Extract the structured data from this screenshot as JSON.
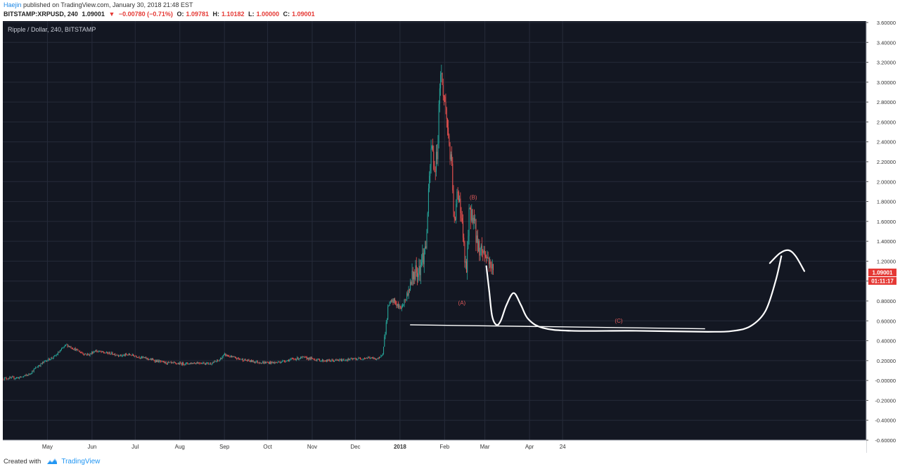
{
  "publication": {
    "author": "Haejin",
    "text": "published on TradingView.com, January 30, 2018 21:48 EST"
  },
  "symbol_line": {
    "symbol": "BITSTAMP:XRPUSD, 240",
    "last": "1.09001",
    "change": "−0.00780 (−0.71%)",
    "open_label": "O:",
    "open": "1.09781",
    "high_label": "H:",
    "high": "1.10182",
    "low_label": "L:",
    "low": "1.00000",
    "close_label": "C:",
    "close": "1.09001"
  },
  "price_tag": {
    "value": "1.09001",
    "countdown": "01:11:17"
  },
  "footer": {
    "created_with": "Created with",
    "brand": "TradingView"
  },
  "colors": {
    "background": "#131722",
    "grid": "#262b3a",
    "candle_up": "#26a69a",
    "candle_down": "#ef5350",
    "price_tag": "#e53935",
    "drawing": "#ffffff",
    "annotation": "#e05a5a"
  },
  "chart_data": {
    "type": "candlestick",
    "title": "Ripple / Dollar, 240, BITSTAMP",
    "ylim": [
      -0.6,
      3.6
    ],
    "y_ticks": [
      "3.60000",
      "3.40000",
      "3.20000",
      "3.00000",
      "2.80000",
      "2.60000",
      "2.40000",
      "2.20000",
      "2.00000",
      "1.80000",
      "1.60000",
      "1.40000",
      "1.20000",
      "1.00000",
      "0.80000",
      "0.60000",
      "0.40000",
      "0.20000",
      "-0.00000",
      "-0.20000",
      "-0.40000",
      "-0.60000"
    ],
    "x_ticks": [
      "May",
      "Jun",
      "Jul",
      "Aug",
      "Sep",
      "Oct",
      "Nov",
      "Dec",
      "2018",
      "Feb",
      "Mar",
      "Apr",
      "24"
    ],
    "x_tick_days": [
      31,
      62,
      92,
      123,
      154,
      184,
      215,
      245,
      276,
      307,
      335,
      366,
      389
    ],
    "x_range_days": [
      0,
      600
    ],
    "grid": true,
    "price_path": [
      [
        0,
        0.02
      ],
      [
        12,
        0.03
      ],
      [
        18,
        0.06
      ],
      [
        24,
        0.14
      ],
      [
        30,
        0.2
      ],
      [
        36,
        0.24
      ],
      [
        40,
        0.3
      ],
      [
        44,
        0.36
      ],
      [
        48,
        0.33
      ],
      [
        52,
        0.3
      ],
      [
        56,
        0.27
      ],
      [
        60,
        0.26
      ],
      [
        64,
        0.3
      ],
      [
        70,
        0.28
      ],
      [
        76,
        0.27
      ],
      [
        82,
        0.25
      ],
      [
        88,
        0.26
      ],
      [
        94,
        0.24
      ],
      [
        100,
        0.22
      ],
      [
        106,
        0.2
      ],
      [
        112,
        0.18
      ],
      [
        120,
        0.17
      ],
      [
        128,
        0.17
      ],
      [
        136,
        0.18
      ],
      [
        144,
        0.17
      ],
      [
        150,
        0.2
      ],
      [
        154,
        0.26
      ],
      [
        160,
        0.23
      ],
      [
        170,
        0.2
      ],
      [
        180,
        0.18
      ],
      [
        190,
        0.18
      ],
      [
        200,
        0.21
      ],
      [
        208,
        0.23
      ],
      [
        214,
        0.22
      ],
      [
        222,
        0.2
      ],
      [
        230,
        0.2
      ],
      [
        240,
        0.21
      ],
      [
        248,
        0.22
      ],
      [
        254,
        0.23
      ],
      [
        258,
        0.22
      ],
      [
        262,
        0.22
      ],
      [
        264,
        0.28
      ],
      [
        266,
        0.52
      ],
      [
        268,
        0.76
      ],
      [
        272,
        0.8
      ],
      [
        276,
        0.72
      ],
      [
        280,
        0.82
      ],
      [
        284,
        1.0
      ],
      [
        286,
        1.1
      ],
      [
        290,
        1.15
      ],
      [
        294,
        1.35
      ],
      [
        296,
        1.9
      ],
      [
        298,
        2.4
      ],
      [
        300,
        2.1
      ],
      [
        302,
        2.3
      ],
      [
        304,
        3.15
      ],
      [
        306,
        2.9
      ],
      [
        308,
        2.7
      ],
      [
        310,
        2.4
      ],
      [
        312,
        2.1
      ],
      [
        314,
        1.5
      ],
      [
        316,
        1.95
      ],
      [
        318,
        1.75
      ],
      [
        320,
        1.4
      ],
      [
        322,
        1.05
      ],
      [
        324,
        1.65
      ],
      [
        326,
        1.7
      ],
      [
        328,
        1.55
      ],
      [
        330,
        1.35
      ],
      [
        334,
        1.3
      ],
      [
        338,
        1.2
      ],
      [
        341,
        1.09
      ]
    ],
    "annotations": [
      {
        "label": "(B)",
        "x": 327,
        "y": 1.82
      },
      {
        "label": "(A)",
        "x": 319,
        "y": 0.76
      },
      {
        "label": "(C)",
        "x": 428,
        "y": 0.58
      }
    ],
    "horizontal_line": {
      "x0": 283,
      "x1": 488,
      "y0": 0.56,
      "y1": 0.52
    },
    "projection_path": [
      [
        336,
        1.15
      ],
      [
        338,
        0.9
      ],
      [
        340,
        0.65
      ],
      [
        343,
        0.56
      ],
      [
        346,
        0.6
      ],
      [
        350,
        0.76
      ],
      [
        355,
        0.88
      ],
      [
        360,
        0.76
      ],
      [
        365,
        0.62
      ],
      [
        375,
        0.53
      ],
      [
        395,
        0.5
      ],
      [
        440,
        0.5
      ],
      [
        490,
        0.49
      ],
      [
        508,
        0.5
      ],
      [
        520,
        0.55
      ],
      [
        530,
        0.7
      ],
      [
        537,
        1.0
      ],
      [
        541,
        1.25
      ]
    ],
    "arrow_head_path": [
      [
        533,
        1.18
      ],
      [
        540,
        1.28
      ],
      [
        546,
        1.31
      ],
      [
        551,
        1.25
      ],
      [
        557,
        1.1
      ]
    ]
  }
}
